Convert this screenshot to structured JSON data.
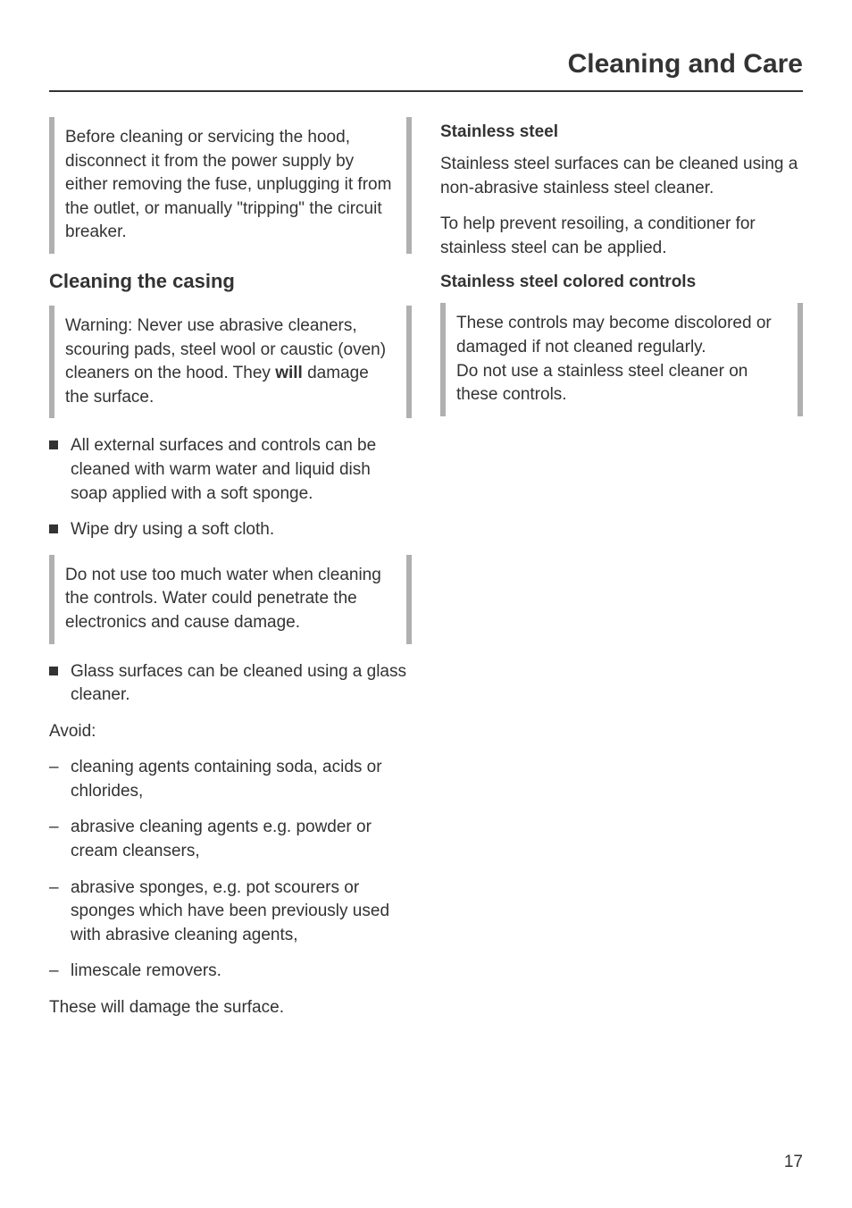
{
  "page": {
    "title": "Cleaning and Care",
    "number": "17"
  },
  "left": {
    "callout_top": "Before cleaning or servicing the hood, disconnect it from the power supply by either removing the fuse, unplugging it from the outlet, or manually \"tripping\" the circuit breaker.",
    "heading": "Cleaning the casing",
    "callout_warning_pre": "Warning: Never use abrasive cleaners, scouring pads, steel wool or caustic (oven) cleaners on the hood. They ",
    "callout_warning_bold": "will",
    "callout_warning_post": " damage the surface.",
    "bullets1": [
      "All external surfaces and controls can be cleaned with warm water and liquid dish soap applied with a soft sponge.",
      "Wipe dry using a soft cloth."
    ],
    "callout_water": "Do not use too much water when cleaning the controls. Water could penetrate the electronics and cause damage.",
    "bullets2": [
      "Glass surfaces can be cleaned using a glass cleaner."
    ],
    "avoid_label": "Avoid:",
    "avoid_items": [
      "cleaning agents containing soda, acids or chlorides,",
      "abrasive cleaning agents e.g. powder or cream cleansers,",
      "abrasive sponges, e.g. pot scourers or sponges which have been previously used with abrasive cleaning agents,",
      "limescale removers."
    ],
    "para_damage": "These will damage the surface."
  },
  "right": {
    "sub1": "Stainless steel",
    "para1": "Stainless steel surfaces can be cleaned using a non-abrasive stainless steel cleaner.",
    "para2": "To help prevent resoiling, a conditioner for stainless steel can be applied.",
    "sub2": "Stainless steel colored controls",
    "callout_controls_line1": "These controls may become discolored or damaged if not cleaned regularly.",
    "callout_controls_line2": "Do not use a stainless steel cleaner on these controls."
  }
}
